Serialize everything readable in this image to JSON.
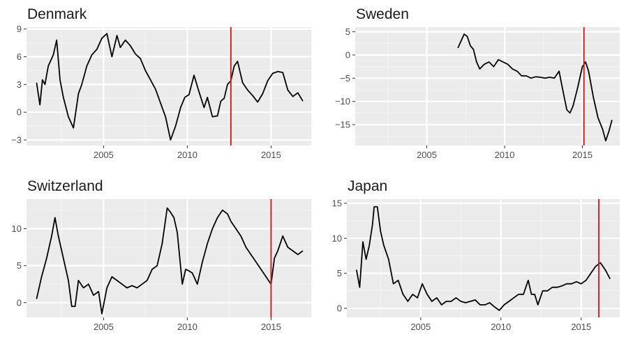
{
  "chart_data": [
    {
      "type": "line",
      "title": "Denmark",
      "xlim": [
        2000.4,
        2017.4
      ],
      "ylim": [
        -3.6,
        9.2
      ],
      "x_ticks": [
        2005,
        2010,
        2015
      ],
      "x_tick_labels": [
        "2005",
        "2010",
        "2015"
      ],
      "y_ticks": [
        -3,
        0,
        3,
        6,
        9
      ],
      "y_tick_labels": [
        "−3",
        "0",
        "3",
        "6",
        "9"
      ],
      "vline": 2012.6,
      "vline_color": "#cc2222",
      "line_color": "#000000",
      "background": "#ebebeb",
      "grid": true,
      "x": [
        2001.0,
        2001.2,
        2001.35,
        2001.5,
        2001.7,
        2002.0,
        2002.2,
        2002.4,
        2002.6,
        2002.9,
        2003.2,
        2003.5,
        2003.7,
        2004.0,
        2004.3,
        2004.6,
        2004.9,
        2005.2,
        2005.5,
        2005.8,
        2006.0,
        2006.3,
        2006.6,
        2006.9,
        2007.2,
        2007.5,
        2007.8,
        2008.1,
        2008.4,
        2008.7,
        2009.0,
        2009.3,
        2009.6,
        2009.85,
        2010.1,
        2010.4,
        2010.7,
        2011.0,
        2011.2,
        2011.5,
        2011.8,
        2012.0,
        2012.2,
        2012.4,
        2012.6,
        2012.8,
        2013.0,
        2013.3,
        2013.6,
        2013.9,
        2014.2,
        2014.5,
        2014.8,
        2015.1,
        2015.4,
        2015.7,
        2016.0,
        2016.3,
        2016.6,
        2016.9
      ],
      "y": [
        3.2,
        0.8,
        3.5,
        3.0,
        5.0,
        6.2,
        7.8,
        3.5,
        1.6,
        -0.5,
        -1.7,
        2.0,
        3.0,
        5.0,
        6.2,
        6.8,
        8.0,
        8.5,
        6.0,
        8.3,
        7.0,
        7.8,
        7.2,
        6.3,
        5.8,
        4.5,
        3.5,
        2.5,
        1.0,
        -0.5,
        -3.0,
        -1.5,
        0.5,
        1.6,
        1.9,
        4.0,
        2.2,
        0.5,
        1.6,
        -0.5,
        -0.4,
        1.2,
        1.5,
        3.0,
        3.4,
        5.0,
        5.5,
        3.2,
        2.4,
        1.8,
        1.1,
        2.0,
        3.4,
        4.2,
        4.4,
        4.3,
        2.4,
        1.7,
        2.1,
        1.2
      ]
    },
    {
      "type": "line",
      "title": "Sweden",
      "xlim": [
        2000.4,
        2017.4
      ],
      "ylim": [
        -19.5,
        6.0
      ],
      "x_ticks": [
        2005,
        2010,
        2015
      ],
      "x_tick_labels": [
        "2005",
        "2010",
        "2015"
      ],
      "y_ticks": [
        -15,
        -10,
        -5,
        0,
        5
      ],
      "y_tick_labels": [
        "−15",
        "−10",
        "−5",
        "0",
        "5"
      ],
      "vline": 2015.1,
      "vline_color": "#cc2222",
      "line_color": "#000000",
      "background": "#ebebeb",
      "grid": true,
      "x": [
        2007.0,
        2007.2,
        2007.4,
        2007.6,
        2007.8,
        2008.0,
        2008.2,
        2008.4,
        2008.7,
        2009.0,
        2009.3,
        2009.6,
        2009.9,
        2010.2,
        2010.5,
        2010.8,
        2011.1,
        2011.4,
        2011.7,
        2012.0,
        2012.3,
        2012.6,
        2012.9,
        2013.2,
        2013.5,
        2013.8,
        2014.0,
        2014.2,
        2014.4,
        2014.7,
        2015.0,
        2015.2,
        2015.4,
        2015.7,
        2016.0,
        2016.3,
        2016.5,
        2016.7,
        2016.9
      ],
      "y": [
        1.5,
        3.0,
        4.5,
        4.0,
        2.0,
        1.2,
        -1.5,
        -3.0,
        -2.0,
        -1.5,
        -2.5,
        -1.0,
        -1.5,
        -2.0,
        -3.0,
        -3.5,
        -4.5,
        -4.5,
        -5.0,
        -4.7,
        -4.8,
        -5.0,
        -4.8,
        -5.0,
        -3.5,
        -8.5,
        -11.8,
        -12.5,
        -11.0,
        -7.0,
        -2.5,
        -1.5,
        -3.5,
        -9.0,
        -13.5,
        -16.0,
        -18.5,
        -16.5,
        -14.0
      ]
    },
    {
      "type": "line",
      "title": "Switzerland",
      "xlim": [
        2000.4,
        2017.4
      ],
      "ylim": [
        -2.0,
        14.0
      ],
      "x_ticks": [
        2005,
        2010,
        2015
      ],
      "x_tick_labels": [
        "2005",
        "2010",
        "2015"
      ],
      "y_ticks": [
        0,
        5,
        10
      ],
      "y_tick_labels": [
        "0",
        "5",
        "10"
      ],
      "vline": 2015.0,
      "vline_color": "#cc2222",
      "line_color": "#000000",
      "background": "#ebebeb",
      "grid": true,
      "x": [
        2001.0,
        2001.3,
        2001.6,
        2001.9,
        2002.1,
        2002.3,
        2002.6,
        2002.9,
        2003.1,
        2003.3,
        2003.5,
        2003.8,
        2004.1,
        2004.4,
        2004.7,
        2004.9,
        2005.2,
        2005.5,
        2005.8,
        2006.1,
        2006.4,
        2006.7,
        2007.0,
        2007.3,
        2007.6,
        2007.9,
        2008.2,
        2008.5,
        2008.8,
        2009.0,
        2009.2,
        2009.4,
        2009.7,
        2009.9,
        2010.1,
        2010.3,
        2010.6,
        2010.9,
        2011.2,
        2011.5,
        2011.8,
        2012.1,
        2012.4,
        2012.6,
        2012.9,
        2013.2,
        2013.5,
        2013.8,
        2014.1,
        2014.4,
        2014.7,
        2015.0,
        2015.2,
        2015.4,
        2015.7,
        2016.0,
        2016.3,
        2016.6,
        2016.9
      ],
      "y": [
        0.5,
        3.5,
        6.0,
        9.0,
        11.5,
        9.0,
        6.0,
        3.0,
        -0.5,
        -0.5,
        3.0,
        2.0,
        2.5,
        1.0,
        1.5,
        -1.5,
        2.0,
        3.5,
        3.0,
        2.5,
        2.0,
        2.3,
        2.0,
        2.5,
        3.0,
        4.5,
        5.0,
        8.0,
        12.8,
        12.2,
        11.5,
        9.5,
        2.5,
        4.5,
        4.3,
        4.0,
        2.5,
        5.5,
        8.0,
        10.0,
        11.5,
        12.5,
        12.0,
        11.0,
        10.0,
        9.0,
        7.5,
        6.5,
        5.5,
        4.5,
        3.5,
        2.5,
        6.0,
        7.0,
        9.0,
        7.5,
        7.0,
        6.5,
        7.0
      ]
    },
    {
      "type": "line",
      "title": "Japan",
      "xlim": [
        2000.4,
        2017.4
      ],
      "ylim": [
        -1.3,
        15.6
      ],
      "x_ticks": [
        2005,
        2010,
        2015
      ],
      "x_tick_labels": [
        "2005",
        "2010",
        "2015"
      ],
      "y_ticks": [
        0,
        5,
        10,
        15
      ],
      "y_tick_labels": [
        "0",
        "5",
        "10",
        "15"
      ],
      "vline": 2016.1,
      "vline_color": "#cc2222",
      "line_color": "#000000",
      "background": "#ebebeb",
      "grid": true,
      "x": [
        2001.0,
        2001.2,
        2001.4,
        2001.6,
        2001.8,
        2002.0,
        2002.1,
        2002.3,
        2002.5,
        2002.7,
        2003.0,
        2003.3,
        2003.6,
        2003.9,
        2004.2,
        2004.5,
        2004.8,
        2005.1,
        2005.4,
        2005.7,
        2006.0,
        2006.3,
        2006.6,
        2006.9,
        2007.2,
        2007.5,
        2007.8,
        2008.1,
        2008.4,
        2008.7,
        2009.0,
        2009.3,
        2009.6,
        2009.9,
        2010.2,
        2010.5,
        2010.8,
        2011.1,
        2011.4,
        2011.7,
        2011.9,
        2012.1,
        2012.3,
        2012.6,
        2012.9,
        2013.2,
        2013.5,
        2013.8,
        2014.1,
        2014.4,
        2014.7,
        2015.0,
        2015.3,
        2015.6,
        2015.9,
        2016.2,
        2016.5,
        2016.8
      ],
      "y": [
        5.5,
        3.0,
        9.5,
        7.0,
        9.0,
        12.0,
        14.5,
        14.5,
        11.0,
        9.0,
        7.0,
        3.5,
        4.0,
        2.0,
        1.0,
        2.0,
        1.5,
        3.5,
        2.0,
        1.0,
        1.5,
        0.5,
        1.0,
        1.0,
        1.5,
        1.0,
        0.8,
        1.0,
        1.2,
        0.5,
        0.5,
        0.8,
        0.2,
        -0.3,
        0.5,
        1.0,
        1.5,
        2.0,
        2.0,
        4.0,
        2.0,
        2.0,
        0.5,
        2.5,
        2.5,
        3.0,
        3.0,
        3.2,
        3.5,
        3.5,
        3.8,
        3.5,
        4.0,
        5.0,
        6.0,
        6.5,
        5.5,
        4.2
      ]
    }
  ]
}
